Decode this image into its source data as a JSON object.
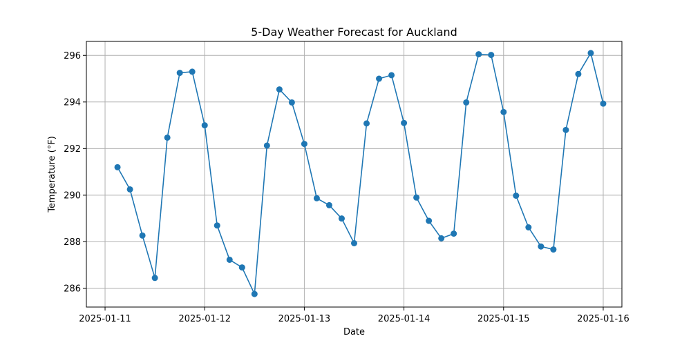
{
  "chart_data": {
    "type": "line",
    "title": "5-Day Weather Forecast for Auckland",
    "xlabel": "Date",
    "ylabel": "Temperature (°F)",
    "x_tick_labels": [
      "2025-01-11",
      "2025-01-12",
      "2025-01-13",
      "2025-01-14",
      "2025-01-15",
      "2025-01-16"
    ],
    "y_tick_labels": [
      "286",
      "288",
      "290",
      "292",
      "294",
      "296"
    ],
    "y_ticks": [
      286,
      288,
      290,
      292,
      294,
      296
    ],
    "ylim": [
      285.2,
      296.6
    ],
    "xlim": [
      "2025-01-10 19:30",
      "2025-01-16 04:30"
    ],
    "grid": true,
    "colors": {
      "series": "#1f77b4"
    },
    "series": [
      {
        "x": [
          "2025-01-11 03:00",
          "2025-01-11 06:00",
          "2025-01-11 09:00",
          "2025-01-11 12:00",
          "2025-01-11 15:00",
          "2025-01-11 18:00",
          "2025-01-11 21:00",
          "2025-01-12 00:00",
          "2025-01-12 03:00",
          "2025-01-12 06:00",
          "2025-01-12 09:00",
          "2025-01-12 12:00",
          "2025-01-12 15:00",
          "2025-01-12 18:00",
          "2025-01-12 21:00",
          "2025-01-13 00:00",
          "2025-01-13 03:00",
          "2025-01-13 06:00",
          "2025-01-13 09:00",
          "2025-01-13 12:00",
          "2025-01-13 15:00",
          "2025-01-13 18:00",
          "2025-01-13 21:00",
          "2025-01-14 00:00",
          "2025-01-14 03:00",
          "2025-01-14 06:00",
          "2025-01-14 09:00",
          "2025-01-14 12:00",
          "2025-01-14 15:00",
          "2025-01-14 18:00",
          "2025-01-14 21:00",
          "2025-01-15 00:00",
          "2025-01-15 03:00",
          "2025-01-15 06:00",
          "2025-01-15 09:00",
          "2025-01-15 12:00",
          "2025-01-15 15:00",
          "2025-01-15 18:00",
          "2025-01-15 21:00",
          "2025-01-16 00:00"
        ],
        "values": [
          291.2,
          290.25,
          288.27,
          286.45,
          292.47,
          295.25,
          295.3,
          293.0,
          288.7,
          287.23,
          286.9,
          285.76,
          292.13,
          294.54,
          293.98,
          292.2,
          289.87,
          289.57,
          289.0,
          287.94,
          293.08,
          295.0,
          295.15,
          293.1,
          289.9,
          288.9,
          288.15,
          288.35,
          293.98,
          296.05,
          296.02,
          293.57,
          289.98,
          288.62,
          287.8,
          287.67,
          292.8,
          295.2,
          296.1,
          293.93
        ]
      }
    ]
  }
}
